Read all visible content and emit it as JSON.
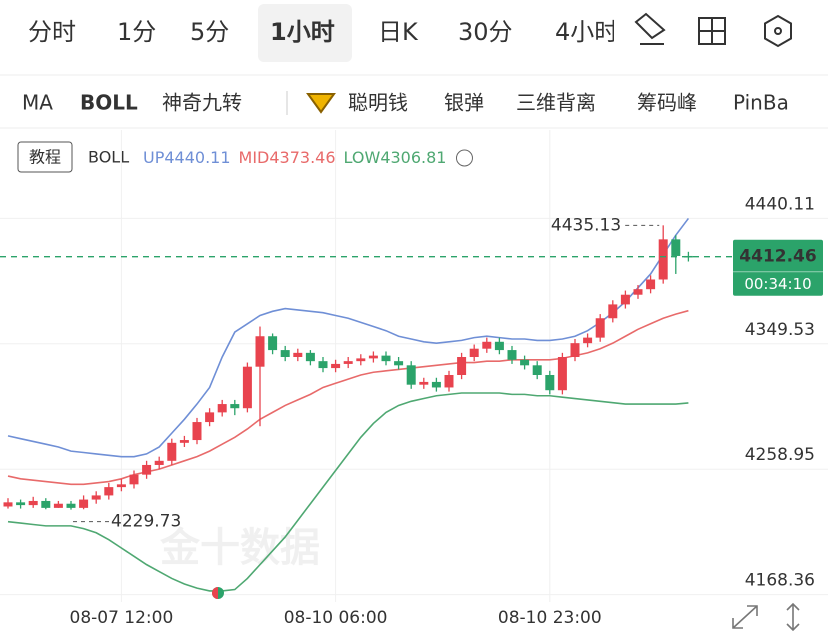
{
  "tabs": [
    "分时",
    "1分",
    "5分",
    "1小时",
    "日K",
    "30分",
    "4小时"
  ],
  "indicators": [
    "MA",
    "BOLL",
    "神奇九转",
    "聪明钱",
    "银弹",
    "三维背离",
    "筹码峰",
    "PinBar"
  ],
  "tutorial": "教程",
  "watermark": "金十数据",
  "chart_data": {
    "type": "candlestick",
    "indicator": "BOLL",
    "countdown": "00:34:10",
    "categories": [
      null,
      null,
      null,
      null,
      null,
      null,
      null,
      null,
      null,
      "08-07 12:00",
      null,
      null,
      null,
      null,
      null,
      null,
      null,
      null,
      null,
      null,
      null,
      null,
      null,
      null,
      null,
      null,
      "08-10 06:00",
      null,
      null,
      null,
      null,
      null,
      null,
      null,
      null,
      null,
      null,
      null,
      null,
      null,
      null,
      null,
      null,
      "08-10 23:00",
      null,
      null,
      null,
      null,
      null,
      null,
      null,
      null,
      null,
      null,
      null
    ],
    "open": [
      4232,
      4235,
      4233,
      4236,
      4231,
      4234,
      4231,
      4237,
      4240,
      4246,
      4248,
      4255,
      4262,
      4265,
      4278,
      4280,
      4293,
      4300,
      4306,
      4303,
      4333,
      4355,
      4345,
      4340,
      4343,
      4337,
      4332,
      4335,
      4337,
      4339,
      4341,
      4337,
      4334,
      4320,
      4322,
      4318,
      4327,
      4340,
      4346,
      4351,
      4345,
      4338,
      4334,
      4327,
      4316,
      4340,
      4350,
      4354,
      4368,
      4378,
      4385,
      4389,
      4396,
      4425,
      4413
    ],
    "high": [
      4238,
      4237,
      4239,
      4238,
      4236,
      4236,
      4240,
      4243,
      4249,
      4252,
      4258,
      4265,
      4268,
      4281,
      4283,
      4296,
      4303,
      4309,
      4309,
      4336,
      4362,
      4357,
      4348,
      4346,
      4345,
      4340,
      4338,
      4340,
      4342,
      4344,
      4344,
      4340,
      4337,
      4325,
      4325,
      4330,
      4343,
      4349,
      4354,
      4354,
      4348,
      4341,
      4337,
      4330,
      4343,
      4353,
      4357,
      4371,
      4381,
      4388,
      4392,
      4399,
      4435.13,
      4428,
      4416
    ],
    "low": [
      4230.5,
      4230.5,
      4231,
      4230,
      4231,
      4229.73,
      4230,
      4234,
      4237,
      4243,
      4245,
      4252,
      4259,
      4262,
      4275,
      4277,
      4290,
      4297,
      4298,
      4300,
      4290,
      4342,
      4337,
      4337,
      4334,
      4329,
      4329,
      4332,
      4334,
      4336,
      4334,
      4331,
      4317,
      4317,
      4315,
      4315,
      4324,
      4337,
      4343,
      4342,
      4335,
      4331,
      4324,
      4313,
      4313,
      4337,
      4347,
      4351,
      4365,
      4375,
      4382,
      4386,
      4393,
      4400,
      4409
    ],
    "close": [
      4235,
      4233,
      4236,
      4231,
      4234,
      4231,
      4237,
      4240,
      4246,
      4248,
      4255,
      4262,
      4265,
      4278,
      4280,
      4293,
      4300,
      4306,
      4303,
      4333,
      4355,
      4345,
      4340,
      4343,
      4337,
      4332,
      4335,
      4337,
      4339,
      4341,
      4337,
      4334,
      4320,
      4322,
      4318,
      4327,
      4340,
      4346,
      4351,
      4345,
      4338,
      4334,
      4327,
      4316,
      4340,
      4350,
      4354,
      4368,
      4378,
      4385,
      4389,
      4396,
      4425,
      4413,
      4412.46
    ],
    "up_color": "#e8434e",
    "down_color": "#2ba36a",
    "series": [
      {
        "name": "UP",
        "color": "#6f8fd6",
        "values": [
          4283,
          4281,
          4279,
          4277,
          4275,
          4272,
          4271,
          4270,
          4269,
          4268,
          4268,
          4270,
          4275,
          4285,
          4295,
          4306,
          4318,
          4340,
          4358,
          4364,
          4370,
          4373,
          4375,
          4374,
          4373,
          4372,
          4370,
          4368,
          4365,
          4362,
          4359,
          4355,
          4353,
          4351,
          4350,
          4351,
          4352,
          4354,
          4355,
          4354,
          4353,
          4353,
          4352,
          4352,
          4353,
          4355,
          4359,
          4365,
          4372,
          4380,
          4390,
          4400,
          4414,
          4428,
          4440.11
        ]
      },
      {
        "name": "MID",
        "color": "#e86a6a",
        "values": [
          4254,
          4252,
          4251,
          4250,
          4249,
          4248,
          4248,
          4249,
          4250,
          4252,
          4255,
          4257,
          4259,
          4262,
          4265,
          4268,
          4272,
          4277,
          4282,
          4288,
          4295,
          4300,
          4305,
          4309,
          4313,
          4318,
          4321,
          4324,
          4327,
          4329,
          4330,
          4331,
          4332,
          4333,
          4334,
          4335,
          4336,
          4336,
          4337,
          4337,
          4338,
          4338,
          4338,
          4338,
          4339,
          4341,
          4343,
          4346,
          4350,
          4355,
          4360,
          4364,
          4368,
          4371,
          4373.46
        ]
      },
      {
        "name": "LOW",
        "color": "#4fa872",
        "values": [
          4221,
          4220,
          4219,
          4218,
          4218,
          4218,
          4216,
          4213,
          4208,
          4202,
          4196,
          4190,
          4185,
          4180,
          4176,
          4173,
          4171,
          4171,
          4172,
          4180,
          4190,
          4200,
          4210,
          4222,
          4234,
          4246,
          4258,
          4270,
          4282,
          4292,
          4300,
          4305,
          4308,
          4310,
          4312,
          4313,
          4314,
          4314,
          4314,
          4314,
          4313,
          4313,
          4312,
          4312,
          4311,
          4310,
          4309,
          4308,
          4307,
          4306,
          4306,
          4306,
          4306,
          4306,
          4306.81
        ]
      }
    ],
    "ylim": [
      4163,
      4504
    ],
    "yticks": [
      4440.11,
      4349.53,
      4258.95,
      4168.36
    ],
    "grid": true
  }
}
